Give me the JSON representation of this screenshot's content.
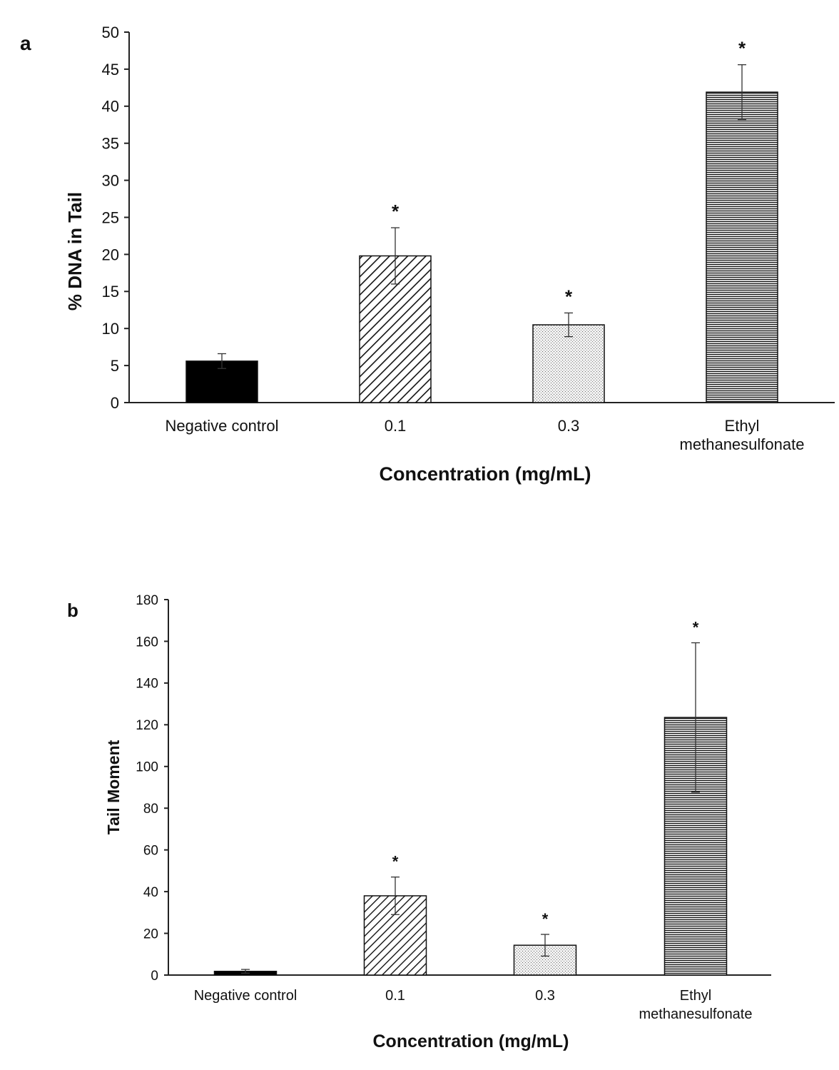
{
  "colors": {
    "axis": "#222222",
    "bar_edge": "#111111",
    "solid": "#000000",
    "background": "#ffffff"
  },
  "chart_data": [
    {
      "panel": "a",
      "type": "bar",
      "xlabel": "Concentration (mg/mL)",
      "ylabel": "% DNA in Tail",
      "ylim": [
        0,
        50
      ],
      "yticks": [
        0,
        5,
        10,
        15,
        20,
        25,
        30,
        35,
        40,
        45,
        50
      ],
      "categories": [
        "Negative control",
        "0.1",
        "0.3",
        "Ethyl methanesulfonate"
      ],
      "category_lines": [
        [
          "Negative control"
        ],
        [
          "0.1"
        ],
        [
          "0.3"
        ],
        [
          "Ethyl",
          "methanesulfonate"
        ]
      ],
      "values": [
        5.6,
        19.8,
        10.5,
        41.9
      ],
      "errors": [
        1.0,
        3.8,
        1.6,
        3.7
      ],
      "patterns": [
        "solid",
        "diagonal",
        "dots",
        "horizontal"
      ],
      "significance": [
        "",
        "*",
        "*",
        "*"
      ]
    },
    {
      "panel": "b",
      "type": "bar",
      "xlabel": "Concentration (mg/mL)",
      "ylabel": "Tail Moment",
      "ylim": [
        0,
        180
      ],
      "yticks": [
        0,
        20,
        40,
        60,
        80,
        100,
        120,
        140,
        160,
        180
      ],
      "categories": [
        "Negative control",
        "0.1",
        "0.3",
        "Ethyl methanesulfonate"
      ],
      "category_lines": [
        [
          "Negative control"
        ],
        [
          "0.1"
        ],
        [
          "0.3"
        ],
        [
          "Ethyl",
          "methanesulfonate"
        ]
      ],
      "values": [
        1.8,
        38.0,
        14.3,
        123.5
      ],
      "errors": [
        0.9,
        9.0,
        5.2,
        35.8
      ],
      "patterns": [
        "solid",
        "diagonal",
        "dots",
        "horizontal"
      ],
      "significance": [
        "",
        "*",
        "*",
        "*"
      ]
    }
  ]
}
